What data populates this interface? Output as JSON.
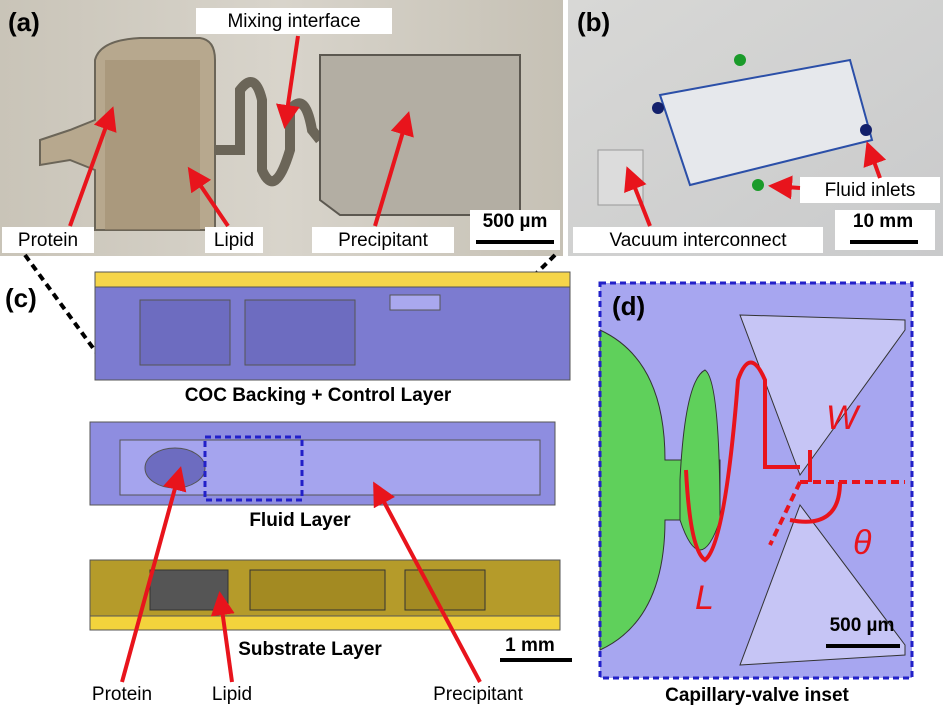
{
  "panel_a": {
    "label": "(a)",
    "mixing": "Mixing interface",
    "protein": "Protein",
    "lipid": "Lipid",
    "precipitant": "Precipitant",
    "scale_bar": "500 µm"
  },
  "panel_b": {
    "label": "(b)",
    "inlets": "Fluid inlets",
    "vacuum": "Vacuum interconnect",
    "scale_bar": "10 mm"
  },
  "panel_c": {
    "label": "(c)",
    "layers": [
      "COC Backing + Control Layer",
      "Fluid Layer",
      "Substrate Layer"
    ],
    "protein": "Protein",
    "lipid": "Lipid",
    "precipitant": "Precipitant",
    "scale_bar": "1 mm"
  },
  "panel_d": {
    "label": "(d)",
    "w": "W",
    "theta": "θ",
    "l": "L",
    "scale_bar": "500 µm",
    "caption": "Capillary-valve inset"
  }
}
